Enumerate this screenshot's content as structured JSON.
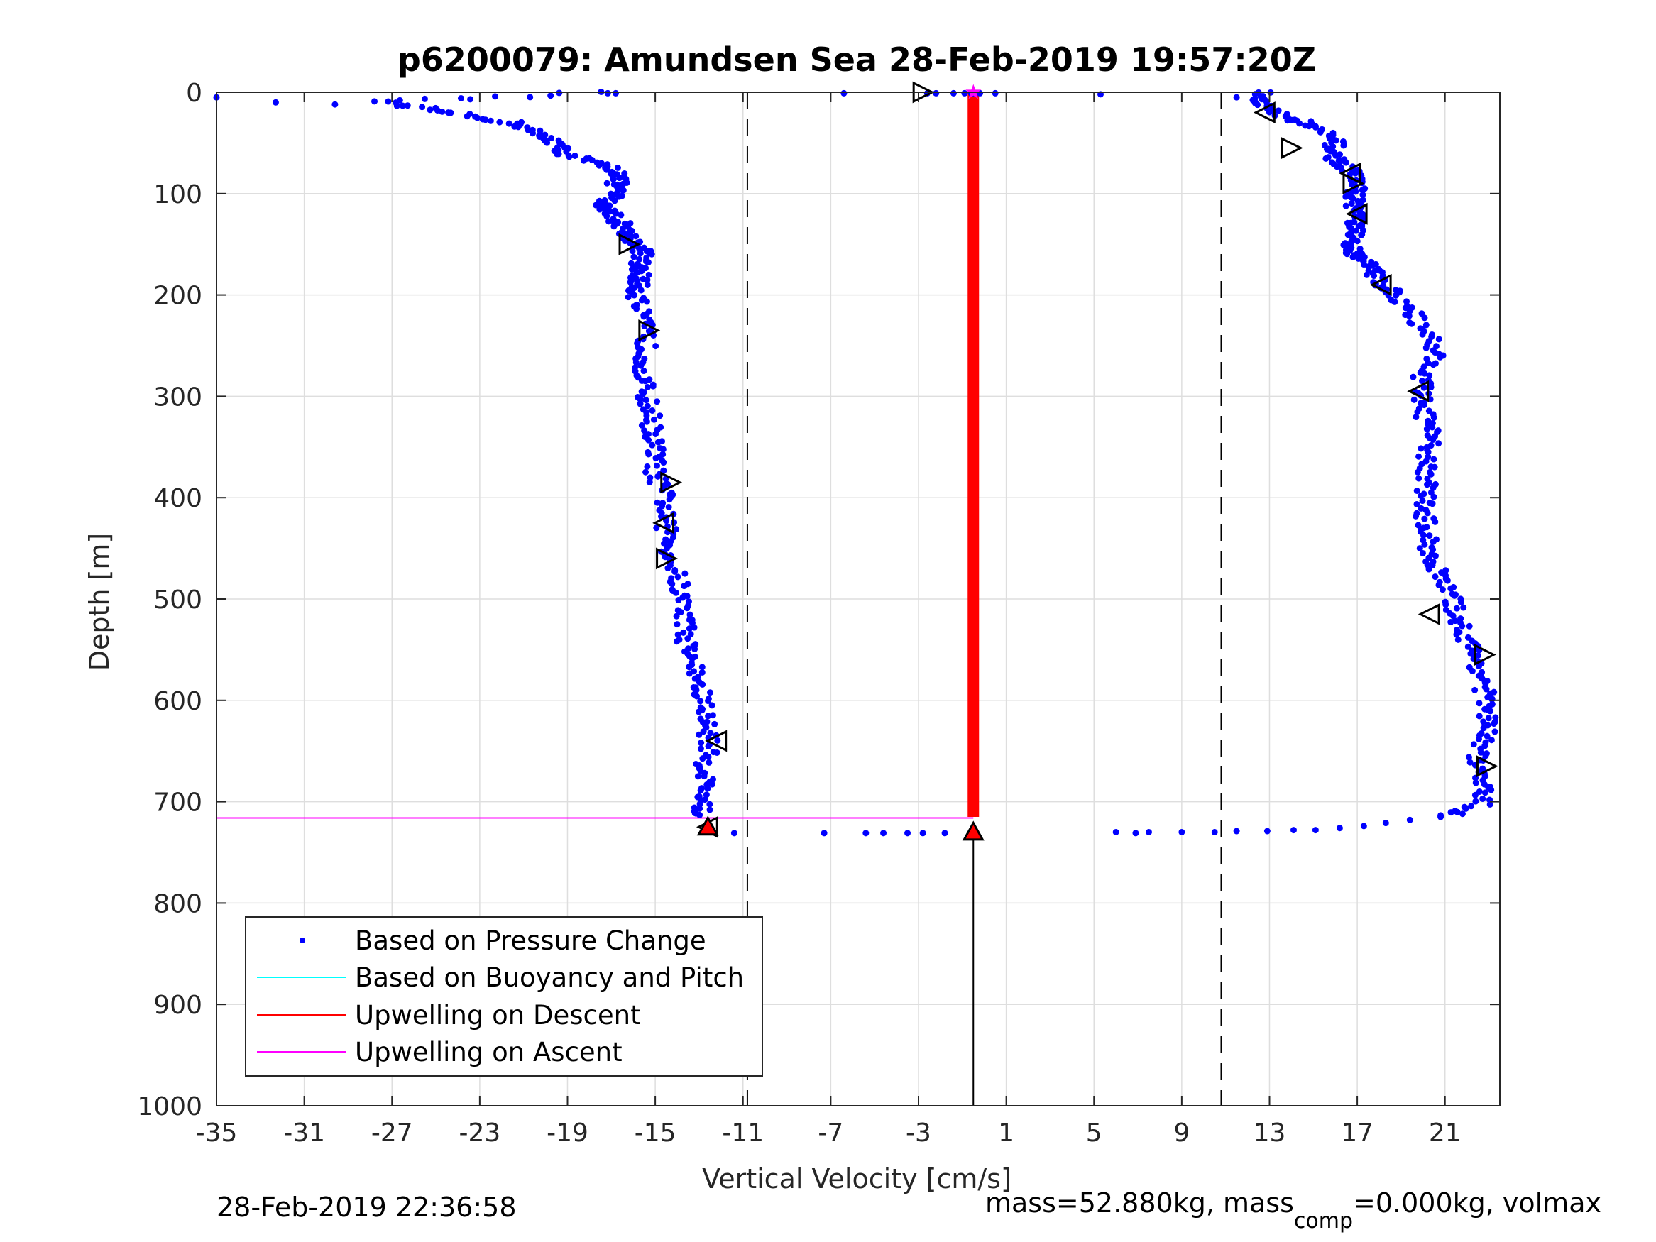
{
  "chart_data": {
    "type": "scatter",
    "title": "p6200079: Amundsen Sea 28-Feb-2019 19:57:20Z",
    "xlabel": "Vertical Velocity [cm/s]",
    "ylabel": "Depth [m]",
    "xlim": [
      -35,
      23.5
    ],
    "ylim": [
      0,
      1000
    ],
    "y_reversed": true,
    "grid": true,
    "xticks": [
      -35,
      -31,
      -27,
      -23,
      -19,
      -15,
      -11,
      -7,
      -3,
      1,
      5,
      9,
      13,
      17,
      21
    ],
    "yticks": [
      0,
      100,
      200,
      300,
      400,
      500,
      600,
      700,
      800,
      900,
      1000
    ],
    "legend": {
      "position": "bottom-left",
      "entries": [
        {
          "label": "Based on Pressure Change",
          "color": "#0000ff",
          "marker": "dot"
        },
        {
          "label": "Based on Buoyancy and Pitch",
          "color": "#00ffff",
          "marker": "line"
        },
        {
          "label": "Upwelling on Descent",
          "color": "#ff0000",
          "marker": "line"
        },
        {
          "label": "Upwelling on Ascent",
          "color": "#ff00ff",
          "marker": "line"
        }
      ]
    },
    "reference_lines": {
      "dashed_x": [
        -10.8,
        10.8
      ],
      "solid_x": [
        -0.5
      ]
    },
    "descent_profile": {
      "depth": [
        0,
        10,
        20,
        30,
        40,
        50,
        60,
        70,
        80,
        90,
        100,
        110,
        120,
        130,
        140,
        150,
        160,
        170,
        180,
        190,
        200,
        220,
        240,
        260,
        280,
        300,
        320,
        340,
        360,
        380,
        400,
        420,
        440,
        460,
        480,
        500,
        520,
        540,
        560,
        580,
        600,
        620,
        640,
        660,
        680,
        700,
        715
      ],
      "velocity": [
        -16.8,
        -27.5,
        -24.5,
        -21.5,
        -20.5,
        -19.5,
        -19.2,
        -17.8,
        -16.5,
        -16.8,
        -16.8,
        -17.3,
        -17,
        -16.5,
        -16.3,
        -15.8,
        -15.5,
        -15.8,
        -15.7,
        -15.8,
        -15.8,
        -15.7,
        -15.4,
        -15.4,
        -15.6,
        -15.4,
        -15.2,
        -15.1,
        -15,
        -15,
        -14.5,
        -14.6,
        -14.4,
        -14.3,
        -14,
        -13.8,
        -13.6,
        -13.6,
        -13.3,
        -13.1,
        -12.8,
        -12.7,
        -12.5,
        -12.7,
        -12.7,
        -12.8,
        -13.1
      ]
    },
    "ascent_profile": {
      "depth": [
        0,
        10,
        20,
        30,
        40,
        50,
        60,
        70,
        80,
        90,
        100,
        110,
        120,
        130,
        140,
        150,
        160,
        170,
        180,
        190,
        200,
        220,
        240,
        260,
        280,
        300,
        320,
        340,
        360,
        380,
        400,
        420,
        440,
        460,
        480,
        500,
        520,
        540,
        560,
        580,
        600,
        620,
        640,
        660,
        680,
        700,
        715
      ],
      "velocity": [
        12.8,
        12.6,
        13.1,
        14.5,
        15.5,
        16,
        15.8,
        16.3,
        16.8,
        17,
        16.9,
        16.9,
        17.1,
        16.9,
        16.8,
        16.6,
        17,
        17.5,
        17.8,
        18.2,
        18.8,
        19.6,
        20.3,
        20.6,
        20,
        19.9,
        20.1,
        20.3,
        20.2,
        20.2,
        20.1,
        20.1,
        20.2,
        20.4,
        20.8,
        21.3,
        21.6,
        22,
        22.4,
        22.8,
        22.8,
        23,
        22.7,
        22.5,
        22.6,
        22.8,
        21
      ]
    },
    "surface_points": {
      "depth": [
        1,
        1,
        1,
        1,
        1,
        1,
        1,
        1,
        1,
        1,
        2,
        5,
        5,
        9,
        10,
        12
      ],
      "velocity": [
        -16.8,
        -6.4,
        -2.6,
        -2.2,
        -1.4,
        -0.9,
        -0.6,
        -0.5,
        -0.2,
        0.5,
        5.3,
        11.5,
        -35,
        -27.8,
        -32.3,
        -29.6
      ]
    },
    "turnaround_points": {
      "depth": [
        712,
        715,
        718,
        721,
        724,
        726,
        728,
        728,
        729,
        729,
        730,
        730,
        730,
        730,
        731,
        731,
        731,
        731,
        731,
        731,
        731,
        731,
        731
      ],
      "velocity": [
        21.8,
        20.8,
        19.4,
        18.3,
        17.3,
        16.2,
        15.1,
        14.1,
        12.9,
        11.5,
        10.5,
        9,
        7.5,
        6,
        6.9,
        -1.8,
        -2.8,
        -3.5,
        -4.6,
        -5.4,
        -7.3,
        -11.4,
        -0.5
      ]
    },
    "triangle_markers": {
      "depth": [
        0,
        20,
        55,
        80,
        90,
        120,
        150,
        190,
        235,
        295,
        385,
        425,
        460,
        515,
        555,
        640,
        665,
        725
      ],
      "velocity": [
        -2.8,
        12.8,
        14,
        16.7,
        16.8,
        17,
        -16.2,
        18.1,
        -15.3,
        19.8,
        -14.3,
        -14.6,
        -14.5,
        20.3,
        22.8,
        -12.2,
        22.9,
        -12.6
      ]
    },
    "upwelling_descent_line": {
      "x": -0.5,
      "depth_range": [
        0,
        715
      ]
    },
    "upwelling_ascent_lines": [
      {
        "x_range": [
          -35,
          -0.5
        ],
        "depth": 0
      },
      {
        "x_range": [
          -35,
          -0.5
        ],
        "depth": 716
      }
    ],
    "end_markers": [
      {
        "x": -0.5,
        "depth": 0,
        "shape": "star",
        "color": "#ff00ff"
      },
      {
        "x": -0.5,
        "depth": 730,
        "shape": "triangle",
        "color": "#ff0000"
      },
      {
        "x": -12.6,
        "depth": 725,
        "shape": "triangle",
        "color": "#ff0000"
      }
    ]
  },
  "footer": {
    "timestamp": "28-Feb-2019 22:36:58",
    "mass_prefix": "mass=52.880kg, mass",
    "mass_subscript": "comp",
    "mass_suffix": "=0.000kg, volmax"
  }
}
